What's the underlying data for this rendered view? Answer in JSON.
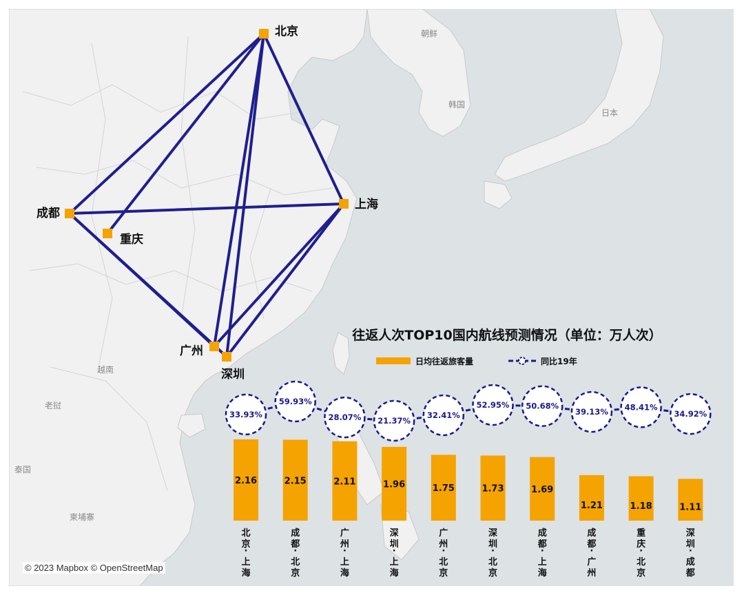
{
  "map": {
    "attribution": "© 2023 Mapbox © OpenStreetMap",
    "cities": [
      {
        "id": "beijing",
        "name": "北京"
      },
      {
        "id": "shanghai",
        "name": "上海"
      },
      {
        "id": "chengdu",
        "name": "成都"
      },
      {
        "id": "chongqing",
        "name": "重庆"
      },
      {
        "id": "guangzhou",
        "name": "广州"
      },
      {
        "id": "shenzhen",
        "name": "深圳"
      }
    ],
    "country_labels": [
      "朝鲜",
      "韩国",
      "日本",
      "越南",
      "老挝",
      "泰国",
      "柬埔寨"
    ],
    "routes": [
      [
        "beijing",
        "shanghai"
      ],
      [
        "chengdu",
        "beijing"
      ],
      [
        "guangzhou",
        "shanghai"
      ],
      [
        "shenzhen",
        "shanghai"
      ],
      [
        "guangzhou",
        "beijing"
      ],
      [
        "shenzhen",
        "beijing"
      ],
      [
        "chengdu",
        "shanghai"
      ],
      [
        "chengdu",
        "guangzhou"
      ],
      [
        "chongqing",
        "beijing"
      ],
      [
        "shenzhen",
        "chengdu"
      ]
    ],
    "route_color": "#1f1f8f",
    "city_color": "#f5a300"
  },
  "chart_data": {
    "type": "bar",
    "title": "往返人次TOP10国内航线预测情况（单位：万人次）",
    "categories": [
      "北京-上海",
      "成都-北京",
      "广州-上海",
      "深圳-上海",
      "广州-北京",
      "深圳-北京",
      "成都-上海",
      "成都-广州",
      "重庆-北京",
      "深圳-成都"
    ],
    "series": [
      {
        "name": "日均往返旅客量",
        "type": "bar",
        "color": "#f5a300",
        "values": [
          2.16,
          2.15,
          2.11,
          1.96,
          1.75,
          1.73,
          1.69,
          1.21,
          1.18,
          1.11
        ]
      },
      {
        "name": "同比19年",
        "type": "line",
        "color": "#1a1a8c",
        "values": [
          "33.93%",
          "59.93%",
          "28.07%",
          "21.37%",
          "32.41%",
          "52.95%",
          "50.68%",
          "39.13%",
          "48.41%",
          "34.92%"
        ]
      }
    ]
  }
}
